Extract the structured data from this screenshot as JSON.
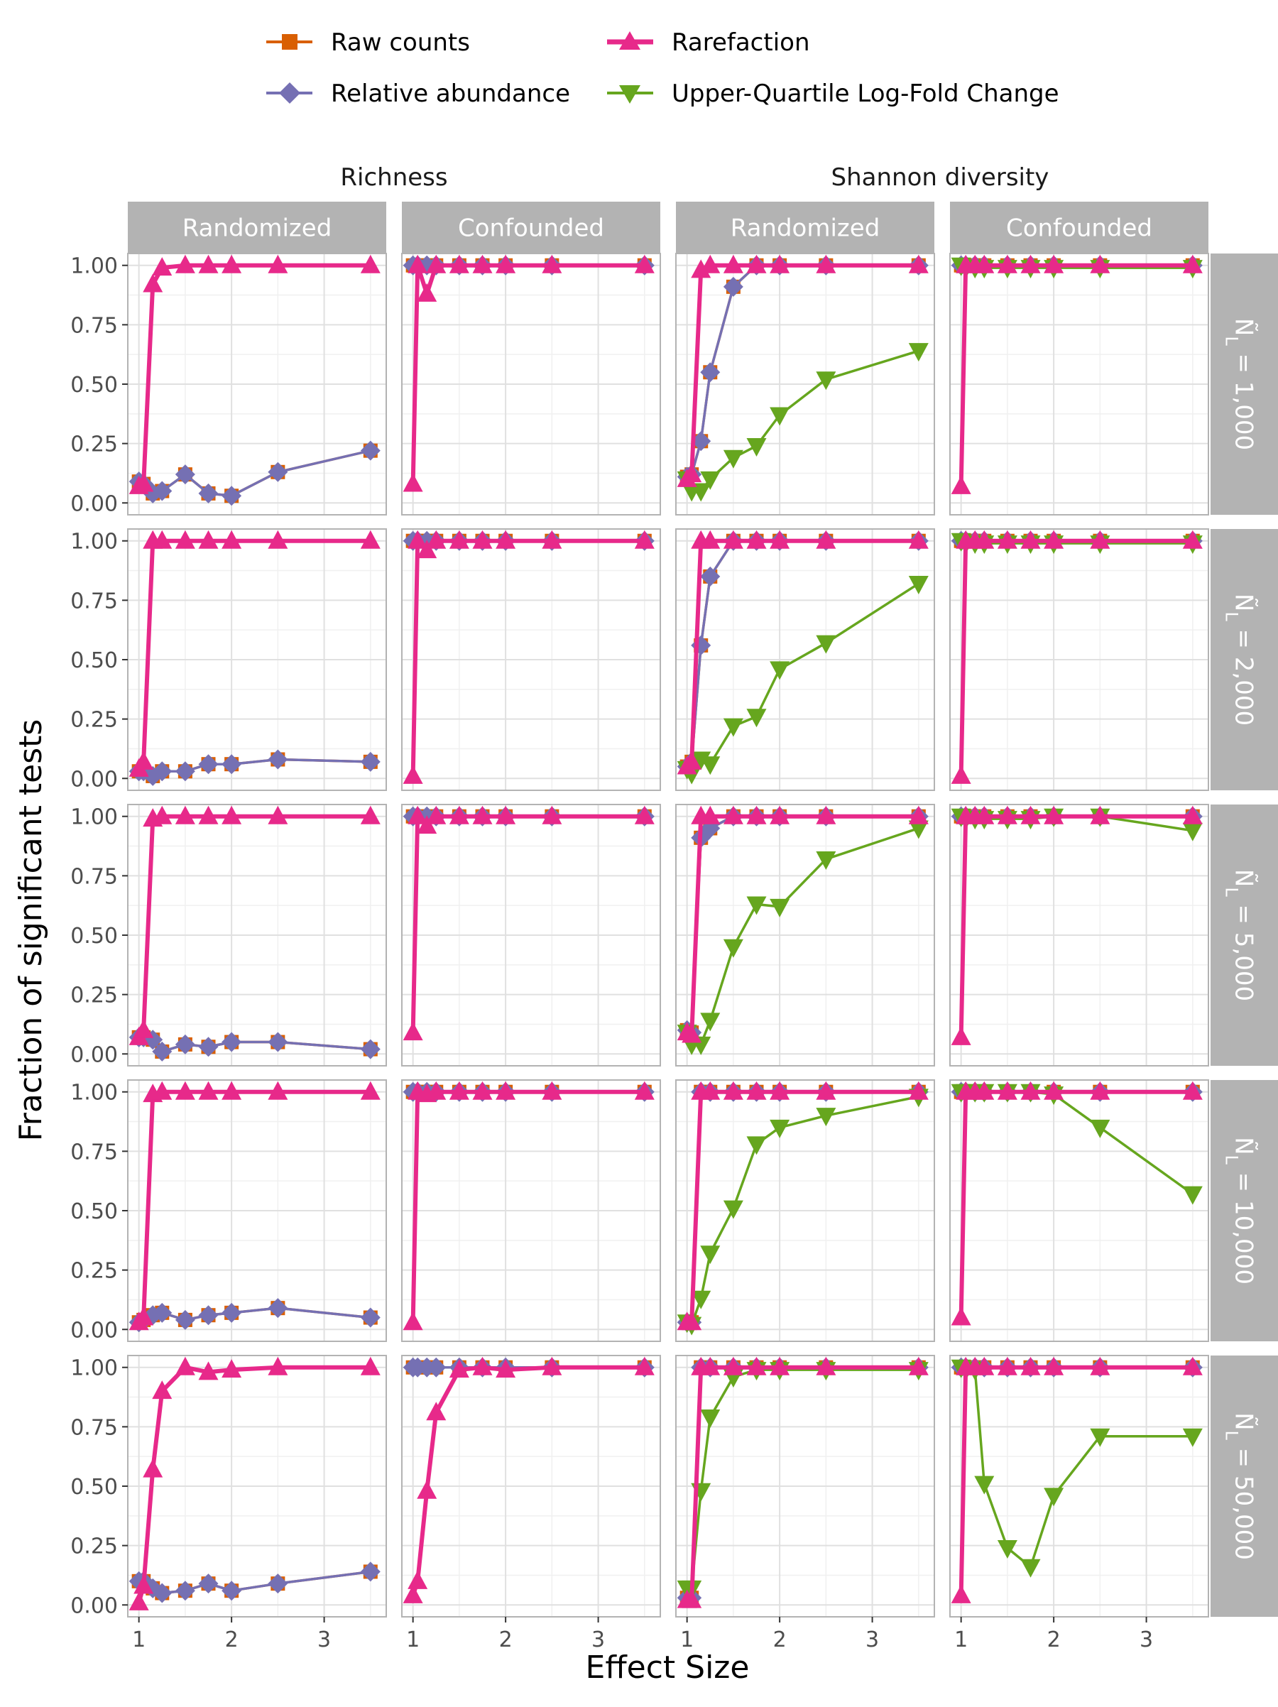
{
  "chart_data": {
    "type": "line",
    "xlabel": "Effect Size",
    "ylabel": "Fraction of significant tests",
    "xlim": [
      0.88,
      3.67
    ],
    "ylim": [
      -0.05,
      1.05
    ],
    "x_ticks": [
      "1",
      "2",
      "3"
    ],
    "x_tick_values": [
      1,
      2,
      3
    ],
    "y_ticks": [
      "0.00",
      "0.25",
      "0.50",
      "0.75",
      "1.00"
    ],
    "y_tick_values": [
      0,
      0.25,
      0.5,
      0.75,
      1
    ],
    "grid": true,
    "legend_position": "top",
    "legend_entries": [
      "Raw counts",
      "Rarefaction",
      "Relative abundance",
      "Upper-Quartile Log-Fold Change"
    ],
    "column_groups": [
      "Richness",
      "Shannon diversity"
    ],
    "column_labels": [
      "Randomized",
      "Confounded",
      "Randomized",
      "Confounded"
    ],
    "row_labels": [
      "Ñ_L = 1,000",
      "Ñ_L = 2,000",
      "Ñ_L = 5,000",
      "Ñ_L = 10,000",
      "Ñ_L = 50,000"
    ],
    "x": [
      1,
      1.05,
      1.15,
      1.25,
      1.5,
      1.75,
      2,
      2.5,
      3.5
    ],
    "series_styles": {
      "raw": {
        "name": "Raw counts",
        "color": "#d95f02",
        "marker": "square"
      },
      "rel": {
        "name": "Relative abundance",
        "color": "#7570b3",
        "marker": "diamond"
      },
      "rare": {
        "name": "Rarefaction",
        "color": "#e7298a",
        "marker": "triangle-up"
      },
      "uq": {
        "name": "Upper-Quartile Log-Fold Change",
        "color": "#66a61e",
        "marker": "triangle-down"
      }
    },
    "panels": [
      [
        {
          "series": {
            "raw": [
              0.09,
              0.08,
              0.04,
              0.05,
              0.12,
              0.04,
              0.03,
              0.13,
              0.22
            ],
            "rel": [
              0.09,
              0.08,
              0.04,
              0.05,
              0.12,
              0.04,
              0.03,
              0.13,
              0.22
            ],
            "rare": [
              0.07,
              0.08,
              0.92,
              0.99,
              1,
              1,
              1,
              1,
              1
            ]
          }
        },
        {
          "series": {
            "raw": [
              1,
              1,
              1,
              1,
              1,
              1,
              1,
              1,
              1
            ],
            "rel": [
              1,
              1,
              1,
              1,
              1,
              1,
              1,
              1,
              1
            ],
            "rare": [
              0.08,
              1,
              0.88,
              1,
              1,
              1,
              1,
              1,
              1
            ]
          }
        },
        {
          "series": {
            "raw": [
              0.11,
              0.12,
              0.26,
              0.55,
              0.91,
              1,
              1,
              1,
              1
            ],
            "rel": [
              0.11,
              0.12,
              0.26,
              0.55,
              0.91,
              1,
              1,
              1,
              1
            ],
            "rare": [
              0.1,
              0.12,
              0.98,
              1,
              1,
              1,
              1,
              1,
              1
            ],
            "uq": [
              0.1,
              0.05,
              0.05,
              0.1,
              0.19,
              0.24,
              0.37,
              0.52,
              0.64
            ]
          }
        },
        {
          "series": {
            "raw": [
              1,
              1,
              1,
              1,
              1,
              1,
              1,
              1,
              1
            ],
            "rel": [
              1,
              1,
              1,
              1,
              1,
              1,
              1,
              1,
              1
            ],
            "rare": [
              0.07,
              1,
              1,
              1,
              1,
              1,
              1,
              1,
              1
            ],
            "uq": [
              1,
              0.99,
              0.99,
              0.99,
              0.99,
              0.99,
              0.99,
              0.99,
              0.99
            ]
          }
        }
      ],
      [
        {
          "series": {
            "raw": [
              0.03,
              0.03,
              0.01,
              0.03,
              0.03,
              0.06,
              0.06,
              0.08,
              0.07
            ],
            "rel": [
              0.03,
              0.03,
              0.01,
              0.03,
              0.03,
              0.06,
              0.06,
              0.08,
              0.07
            ],
            "rare": [
              0.04,
              0.07,
              1,
              1,
              1,
              1,
              1,
              1,
              1
            ]
          }
        },
        {
          "series": {
            "raw": [
              1,
              1,
              1,
              1,
              1,
              1,
              1,
              1,
              1
            ],
            "rel": [
              1,
              1,
              1,
              1,
              1,
              1,
              1,
              1,
              1
            ],
            "rare": [
              0.01,
              1,
              0.96,
              1,
              1,
              1,
              1,
              1,
              1
            ]
          }
        },
        {
          "series": {
            "raw": [
              0.05,
              0.07,
              0.56,
              0.85,
              1,
              1,
              1,
              1,
              1
            ],
            "rel": [
              0.05,
              0.07,
              0.56,
              0.85,
              1,
              1,
              1,
              1,
              1
            ],
            "rare": [
              0.05,
              0.07,
              1,
              1,
              1,
              1,
              1,
              1,
              1
            ],
            "uq": [
              0.04,
              0.02,
              0.08,
              0.06,
              0.22,
              0.26,
              0.46,
              0.57,
              0.82
            ]
          }
        },
        {
          "series": {
            "raw": [
              1,
              1,
              1,
              1,
              1,
              1,
              1,
              1,
              1
            ],
            "rel": [
              1,
              1,
              1,
              1,
              1,
              1,
              1,
              1,
              1
            ],
            "rare": [
              0.01,
              1,
              1,
              1,
              1,
              1,
              1,
              1,
              1
            ],
            "uq": [
              1,
              0.99,
              0.99,
              0.99,
              0.99,
              0.99,
              0.99,
              0.99,
              0.99
            ]
          }
        }
      ],
      [
        {
          "series": {
            "raw": [
              0.07,
              0.07,
              0.06,
              0.01,
              0.04,
              0.03,
              0.05,
              0.05,
              0.02
            ],
            "rel": [
              0.07,
              0.07,
              0.06,
              0.01,
              0.04,
              0.03,
              0.05,
              0.05,
              0.02
            ],
            "rare": [
              0.07,
              0.1,
              0.99,
              1,
              1,
              1,
              1,
              1,
              1
            ]
          }
        },
        {
          "series": {
            "raw": [
              1,
              1,
              1,
              1,
              1,
              1,
              1,
              1,
              1
            ],
            "rel": [
              1,
              1,
              1,
              1,
              1,
              1,
              1,
              1,
              1
            ],
            "rare": [
              0.09,
              1,
              0.96,
              1,
              1,
              1,
              1,
              1,
              1
            ]
          }
        },
        {
          "series": {
            "raw": [
              0.1,
              0.09,
              0.91,
              0.95,
              1,
              1,
              1,
              1,
              1
            ],
            "rel": [
              0.1,
              0.09,
              0.91,
              0.95,
              1,
              1,
              1,
              1,
              1
            ],
            "rare": [
              0.09,
              0.08,
              1,
              1,
              1,
              1,
              1,
              1,
              1
            ],
            "uq": [
              0.09,
              0.04,
              0.04,
              0.14,
              0.45,
              0.63,
              0.62,
              0.82,
              0.95
            ]
          }
        },
        {
          "series": {
            "raw": [
              1,
              1,
              1,
              1,
              1,
              1,
              1,
              1,
              1
            ],
            "rel": [
              1,
              1,
              1,
              1,
              1,
              1,
              1,
              1,
              1
            ],
            "rare": [
              0.07,
              1,
              1,
              1,
              1,
              1,
              1,
              1,
              1
            ],
            "uq": [
              1,
              0.99,
              0.99,
              0.99,
              0.99,
              0.99,
              1,
              1,
              0.94
            ]
          }
        }
      ],
      [
        {
          "series": {
            "raw": [
              0.03,
              0.04,
              0.06,
              0.07,
              0.04,
              0.06,
              0.07,
              0.09,
              0.05
            ],
            "rel": [
              0.03,
              0.04,
              0.06,
              0.07,
              0.04,
              0.06,
              0.07,
              0.09,
              0.05
            ],
            "rare": [
              0.03,
              0.05,
              0.99,
              1,
              1,
              1,
              1,
              1,
              1
            ]
          }
        },
        {
          "series": {
            "raw": [
              1,
              1,
              1,
              1,
              1,
              1,
              1,
              1,
              1
            ],
            "rel": [
              1,
              1,
              1,
              1,
              1,
              1,
              1,
              1,
              1
            ],
            "rare": [
              0.03,
              1,
              0.99,
              1,
              1,
              1,
              1,
              1,
              1
            ]
          }
        },
        {
          "series": {
            "raw": [
              0.03,
              0.03,
              1,
              1,
              1,
              1,
              1,
              1,
              1
            ],
            "rel": [
              0.03,
              0.03,
              1,
              1,
              1,
              1,
              1,
              1,
              1
            ],
            "rare": [
              0.03,
              0.03,
              1,
              1,
              1,
              1,
              1,
              1,
              1
            ],
            "uq": [
              0.03,
              0.02,
              0.13,
              0.32,
              0.51,
              0.78,
              0.85,
              0.9,
              0.98
            ]
          }
        },
        {
          "series": {
            "raw": [
              1,
              1,
              1,
              1,
              1,
              1,
              1,
              1,
              1
            ],
            "rel": [
              1,
              1,
              1,
              1,
              1,
              1,
              1,
              1,
              1
            ],
            "rare": [
              0.05,
              1,
              1,
              1,
              1,
              1,
              1,
              1,
              1
            ],
            "uq": [
              1,
              1,
              1,
              1,
              1,
              1,
              0.99,
              0.85,
              0.57
            ]
          }
        }
      ],
      [
        {
          "series": {
            "raw": [
              0.1,
              0.1,
              0.07,
              0.05,
              0.06,
              0.09,
              0.06,
              0.09,
              0.14
            ],
            "rel": [
              0.1,
              0.1,
              0.07,
              0.05,
              0.06,
              0.09,
              0.06,
              0.09,
              0.14
            ],
            "rare": [
              0.01,
              0.08,
              0.57,
              0.9,
              1,
              0.98,
              0.99,
              1,
              1
            ]
          }
        },
        {
          "series": {
            "raw": [
              1,
              1,
              1,
              1,
              1,
              1,
              1,
              1,
              1
            ],
            "rel": [
              1,
              1,
              1,
              1,
              1,
              1,
              1,
              1,
              1
            ],
            "rare": [
              0.04,
              0.1,
              0.48,
              0.81,
              0.99,
              1,
              0.99,
              1,
              1
            ]
          }
        },
        {
          "series": {
            "raw": [
              0.03,
              0.03,
              1,
              1,
              1,
              1,
              1,
              1,
              1
            ],
            "rel": [
              0.03,
              0.03,
              1,
              1,
              1,
              1,
              1,
              1,
              1
            ],
            "rare": [
              0.02,
              0.02,
              1,
              1,
              1,
              1,
              1,
              1,
              1
            ],
            "uq": [
              0.07,
              0.07,
              0.48,
              0.79,
              0.96,
              0.99,
              0.99,
              0.99,
              0.99
            ]
          }
        },
        {
          "series": {
            "raw": [
              1,
              1,
              1,
              1,
              1,
              1,
              1,
              1,
              1
            ],
            "rel": [
              1,
              1,
              1,
              1,
              1,
              1,
              1,
              1,
              1
            ],
            "rare": [
              0.04,
              1,
              1,
              1,
              1,
              1,
              1,
              1,
              1
            ],
            "uq": [
              1,
              0.99,
              0.99,
              0.51,
              0.24,
              0.16,
              0.46,
              0.71,
              0.71
            ]
          }
        }
      ]
    ]
  }
}
